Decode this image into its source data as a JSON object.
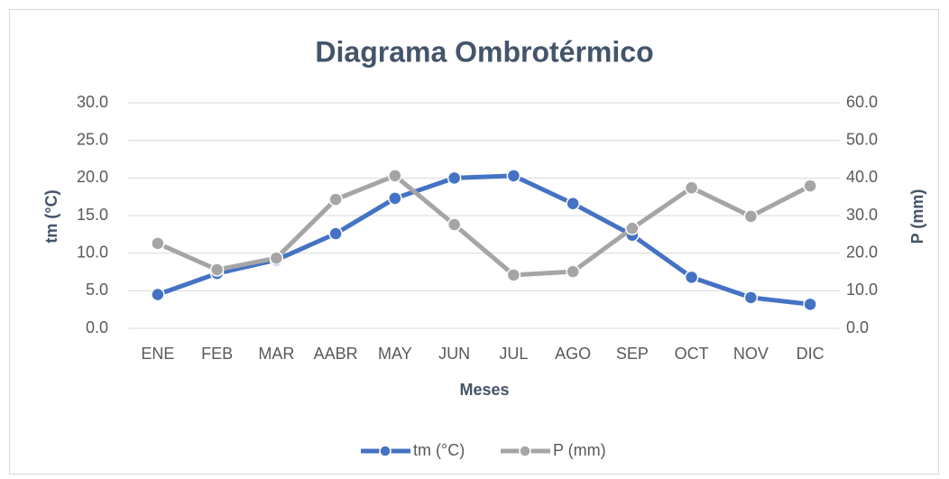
{
  "chart_data": {
    "type": "line",
    "title": "Diagrama Ombrotérmico",
    "x_label": "Meses",
    "y_label": "tm (°C)",
    "y2_label": "P (mm)",
    "categories": [
      "ENE",
      "FEB",
      "MAR",
      "AABR",
      "MAY",
      "JUN",
      "JUL",
      "AGO",
      "SEP",
      "OCT",
      "NOV",
      "DIC"
    ],
    "series": [
      {
        "name": "tm (°C)",
        "color": "#4472c4",
        "values": [
          4.5,
          7.3,
          9.1,
          12.6,
          17.3,
          20.0,
          20.3,
          16.6,
          12.4,
          6.8,
          4.1,
          3.2
        ]
      },
      {
        "name": "P (mm)",
        "color": "#a5a5a5",
        "axis": "y2",
        "values": [
          22.6,
          15.6,
          18.7,
          34.3,
          40.6,
          27.6,
          14.2,
          15.1,
          26.6,
          37.4,
          29.8,
          37.9
        ]
      }
    ],
    "ylim": [
      0,
      30
    ],
    "yticks": [
      {
        "value": 0,
        "label": "0.0"
      },
      {
        "value": 5,
        "label": "5.0"
      },
      {
        "value": 10,
        "label": "10.0"
      },
      {
        "value": 15,
        "label": "15.0"
      },
      {
        "value": 20,
        "label": "20.0"
      },
      {
        "value": 25,
        "label": "25.0"
      },
      {
        "value": 30,
        "label": "30.0"
      }
    ],
    "y2lim": [
      0,
      60
    ],
    "y2ticks": [
      {
        "value": 0,
        "label": "0.0"
      },
      {
        "value": 10,
        "label": "10.0"
      },
      {
        "value": 20,
        "label": "20.0"
      },
      {
        "value": 30,
        "label": "30.0"
      },
      {
        "value": 40,
        "label": "40.0"
      },
      {
        "value": 50,
        "label": "50.0"
      },
      {
        "value": 60,
        "label": "60.0"
      }
    ],
    "grid": true,
    "legend": "bottom"
  }
}
